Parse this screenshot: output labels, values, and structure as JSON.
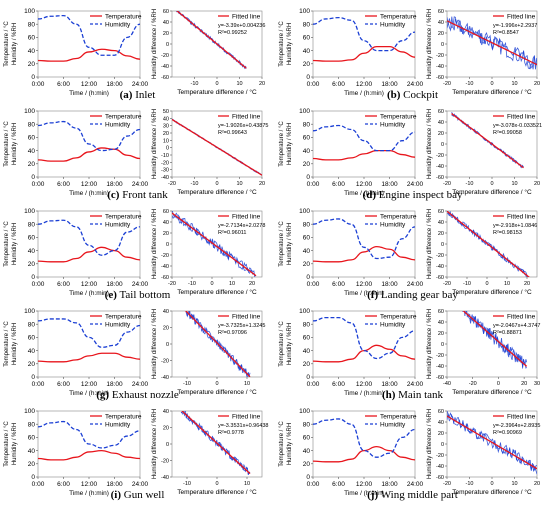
{
  "common": {
    "left_legend": [
      "Temperature",
      "Humidity"
    ],
    "left_ylabel": "Temperature / °C\nHumidity / %RH",
    "left_xlabel": "Time / (h:min)",
    "left_xticks": [
      "0:00",
      "6:00",
      "12:00",
      "18:00",
      "24:00"
    ],
    "left_yticks": [
      "0",
      "20",
      "40",
      "60",
      "80",
      "100"
    ],
    "right_legend": "Fitted line",
    "right_ylabel": "Humidity difference / %RH",
    "right_xlabel": "Temperature difference / °C",
    "colors": {
      "temperature": "#e8151c",
      "humidity": "#1b3fd4",
      "fit": "#e8151c",
      "scatter": "#1b3fd4"
    }
  },
  "panels": [
    {
      "letter": "(a)",
      "name": "Inlet"
    },
    {
      "letter": "(b)",
      "name": "Cockpit"
    },
    {
      "letter": "(c)",
      "name": "Front tank"
    },
    {
      "letter": "(d)",
      "name": "Engine inspect bay"
    },
    {
      "letter": "(e)",
      "name": "Tail bottom"
    },
    {
      "letter": "(f)",
      "name": "Landing gear bay"
    },
    {
      "letter": "(g)",
      "name": "Exhaust nozzle"
    },
    {
      "letter": "(h)",
      "name": "Main tank"
    },
    {
      "letter": "(i)",
      "name": "Gun well"
    },
    {
      "letter": "(j)",
      "name": "Wing middle part"
    }
  ],
  "chart_data": [
    {
      "type": "line",
      "panel": "(a)",
      "x": [
        0,
        3,
        6,
        9,
        12,
        15,
        18,
        21,
        24
      ],
      "series": [
        {
          "name": "Temperature",
          "values": [
            25,
            24,
            24,
            28,
            38,
            42,
            40,
            32,
            27
          ]
        },
        {
          "name": "Humidity",
          "values": [
            88,
            92,
            93,
            80,
            45,
            33,
            33,
            60,
            80
          ]
        }
      ],
      "ylim": [
        0,
        100
      ]
    },
    {
      "type": "scatter",
      "panel": "(a)",
      "equation": "y=-3.39x+0.004236",
      "r2": "R²=0.99252",
      "xlim": [
        -20,
        20
      ],
      "ylim": [
        -60,
        60
      ],
      "xticks": [
        -10,
        0,
        10,
        20
      ],
      "yticks": [
        -60,
        -40,
        -20,
        0,
        20,
        40,
        60
      ],
      "fit": {
        "slope": -3.39,
        "intercept": 0.004236
      },
      "points_range": [
        -18,
        13
      ],
      "spread": 3
    },
    {
      "type": "line",
      "panel": "(b)",
      "x": [
        0,
        3,
        6,
        9,
        12,
        15,
        18,
        21,
        24
      ],
      "series": [
        {
          "name": "Temperature",
          "values": [
            25,
            24,
            24,
            26,
            36,
            46,
            46,
            38,
            30
          ]
        },
        {
          "name": "Humidity",
          "values": [
            80,
            88,
            90,
            86,
            55,
            40,
            40,
            55,
            68
          ]
        }
      ],
      "ylim": [
        0,
        100
      ]
    },
    {
      "type": "scatter",
      "panel": "(b)",
      "equation": "y=-1.996x+2.2937",
      "r2": "R²=0.8547",
      "xlim": [
        -20,
        20
      ],
      "ylim": [
        -60,
        60
      ],
      "xticks": [
        -20,
        -10,
        0,
        10,
        20
      ],
      "yticks": [
        -60,
        -40,
        -20,
        0,
        20,
        40,
        60
      ],
      "fit": {
        "slope": -1.996,
        "intercept": 2.2937
      },
      "points_range": [
        -20,
        22
      ],
      "spread": 14
    },
    {
      "type": "line",
      "panel": "(c)",
      "x": [
        0,
        3,
        6,
        9,
        12,
        15,
        18,
        21,
        24
      ],
      "series": [
        {
          "name": "Temperature",
          "values": [
            26,
            24,
            24,
            29,
            38,
            44,
            42,
            33,
            28
          ]
        },
        {
          "name": "Humidity",
          "values": [
            78,
            82,
            84,
            74,
            50,
            40,
            42,
            62,
            72
          ]
        }
      ],
      "ylim": [
        0,
        100
      ]
    },
    {
      "type": "scatter",
      "panel": "(c)",
      "equation": "y=-1.9026x+0.43875",
      "r2": "R²=0.99643",
      "xlim": [
        -20,
        20
      ],
      "ylim": [
        -40,
        50
      ],
      "xticks": [
        -20,
        -10,
        0,
        10,
        20
      ],
      "yticks": [
        -40,
        -30,
        -20,
        -10,
        0,
        10,
        20,
        30,
        40,
        50
      ],
      "fit": {
        "slope": -1.9026,
        "intercept": 0.43875
      },
      "points_range": [
        -20,
        20
      ],
      "spread": 1
    },
    {
      "type": "line",
      "panel": "(d)",
      "x": [
        0,
        3,
        6,
        9,
        12,
        15,
        18,
        21,
        24
      ],
      "series": [
        {
          "name": "Temperature",
          "values": [
            28,
            26,
            26,
            29,
            35,
            40,
            40,
            34,
            30
          ]
        },
        {
          "name": "Humidity",
          "values": [
            70,
            76,
            78,
            72,
            55,
            40,
            40,
            55,
            68
          ]
        }
      ],
      "ylim": [
        0,
        100
      ]
    },
    {
      "type": "scatter",
      "panel": "(d)",
      "equation": "y=-3.078x-0.033521",
      "r2": "R²=0.99058",
      "xlim": [
        -20,
        20
      ],
      "ylim": [
        -60,
        60
      ],
      "xticks": [
        -20,
        -10,
        0,
        10,
        20
      ],
      "yticks": [
        -60,
        -40,
        -20,
        0,
        20,
        40,
        60
      ],
      "fit": {
        "slope": -3.078,
        "intercept": -0.033521
      },
      "points_range": [
        -18,
        14
      ],
      "spread": 3
    },
    {
      "type": "line",
      "panel": "(e)",
      "x": [
        0,
        3,
        6,
        9,
        12,
        15,
        18,
        21,
        24
      ],
      "series": [
        {
          "name": "Temperature",
          "values": [
            24,
            23,
            23,
            28,
            38,
            45,
            40,
            30,
            26
          ]
        },
        {
          "name": "Humidity",
          "values": [
            80,
            85,
            86,
            76,
            48,
            33,
            40,
            68,
            76
          ]
        }
      ],
      "ylim": [
        0,
        100
      ]
    },
    {
      "type": "scatter",
      "panel": "(e)",
      "equation": "y=-2.7134x+2.0278",
      "r2": "R²=0.96011",
      "xlim": [
        -20,
        25
      ],
      "ylim": [
        -60,
        60
      ],
      "xticks": [
        -20,
        -10,
        0,
        10,
        20
      ],
      "yticks": [
        -60,
        -40,
        -20,
        0,
        20,
        40,
        60
      ],
      "fit": {
        "slope": -2.7134,
        "intercept": 2.0278
      },
      "points_range": [
        -20,
        22
      ],
      "spread": 8
    },
    {
      "type": "line",
      "panel": "(f)",
      "x": [
        0,
        3,
        6,
        9,
        12,
        15,
        18,
        21,
        24
      ],
      "series": [
        {
          "name": "Temperature",
          "values": [
            24,
            23,
            23,
            26,
            38,
            46,
            42,
            30,
            26
          ]
        },
        {
          "name": "Humidity",
          "values": [
            80,
            86,
            88,
            80,
            45,
            28,
            30,
            58,
            76
          ]
        }
      ],
      "ylim": [
        0,
        100
      ]
    },
    {
      "type": "scatter",
      "panel": "(f)",
      "equation": "y=-2.918x+1.0846",
      "r2": "R²=0.98153",
      "xlim": [
        -20,
        25
      ],
      "ylim": [
        -60,
        60
      ],
      "xticks": [
        -20,
        -10,
        0,
        10,
        20
      ],
      "yticks": [
        -60,
        -40,
        -20,
        0,
        20,
        40,
        60
      ],
      "fit": {
        "slope": -2.918,
        "intercept": 1.0846
      },
      "points_range": [
        -20,
        22
      ],
      "spread": 5
    },
    {
      "type": "line",
      "panel": "(g)",
      "x": [
        0,
        3,
        6,
        9,
        12,
        15,
        18,
        21,
        24
      ],
      "series": [
        {
          "name": "Temperature",
          "values": [
            24,
            23,
            23,
            26,
            32,
            36,
            36,
            30,
            27
          ]
        },
        {
          "name": "Humidity",
          "values": [
            85,
            88,
            88,
            82,
            60,
            45,
            48,
            68,
            78
          ]
        }
      ],
      "ylim": [
        0,
        100
      ]
    },
    {
      "type": "scatter",
      "panel": "(g)",
      "equation": "y=-3.7325x+1.3245",
      "r2": "R²=0.97096",
      "xlim": [
        -15,
        15
      ],
      "ylim": [
        -40,
        40
      ],
      "xticks": [
        -10,
        0,
        10
      ],
      "yticks": [
        -40,
        -20,
        0,
        20,
        40
      ],
      "fit": {
        "slope": -3.7325,
        "intercept": 1.3245
      },
      "points_range": [
        -11,
        11
      ],
      "spread": 5
    },
    {
      "type": "line",
      "panel": "(h)",
      "x": [
        0,
        3,
        6,
        9,
        12,
        15,
        18,
        21,
        24
      ],
      "series": [
        {
          "name": "Temperature",
          "values": [
            24,
            23,
            23,
            27,
            40,
            48,
            42,
            32,
            27
          ]
        },
        {
          "name": "Humidity",
          "values": [
            85,
            90,
            90,
            82,
            40,
            28,
            36,
            60,
            70
          ]
        }
      ],
      "ylim": [
        0,
        100
      ]
    },
    {
      "type": "scatter",
      "panel": "(h)",
      "equation": "y=-2.0467x+4.3747",
      "r2": "R²=0.88871",
      "xlim": [
        -40,
        30
      ],
      "ylim": [
        -60,
        60
      ],
      "xticks": [
        -40,
        -20,
        0,
        20,
        30
      ],
      "yticks": [
        -60,
        -40,
        -20,
        0,
        20,
        40,
        60
      ],
      "fit": {
        "slope": -2.0467,
        "intercept": 4.3747
      },
      "points_range": [
        -28,
        22
      ],
      "spread": 12
    },
    {
      "type": "line",
      "panel": "(i)",
      "x": [
        0,
        3,
        6,
        9,
        12,
        15,
        18,
        21,
        24
      ],
      "series": [
        {
          "name": "Temperature",
          "values": [
            28,
            26,
            26,
            30,
            38,
            40,
            36,
            30,
            28
          ]
        },
        {
          "name": "Humidity",
          "values": [
            76,
            82,
            84,
            72,
            50,
            44,
            48,
            62,
            70
          ]
        }
      ],
      "ylim": [
        0,
        100
      ]
    },
    {
      "type": "scatter",
      "panel": "(i)",
      "equation": "y=-3.3531x+0.96438",
      "r2": "R²=0.9778",
      "xlim": [
        -15,
        15
      ],
      "ylim": [
        -40,
        40
      ],
      "xticks": [
        -10,
        0,
        10
      ],
      "yticks": [
        -40,
        -20,
        0,
        20,
        40
      ],
      "fit": {
        "slope": -3.3531,
        "intercept": 0.96438
      },
      "points_range": [
        -12,
        11
      ],
      "spread": 4
    },
    {
      "type": "line",
      "panel": "(j)",
      "x": [
        0,
        3,
        6,
        9,
        12,
        15,
        18,
        21,
        24
      ],
      "series": [
        {
          "name": "Temperature",
          "values": [
            24,
            23,
            23,
            27,
            40,
            46,
            40,
            30,
            26
          ]
        },
        {
          "name": "Humidity",
          "values": [
            80,
            86,
            88,
            80,
            40,
            30,
            36,
            60,
            72
          ]
        }
      ],
      "ylim": [
        0,
        100
      ]
    },
    {
      "type": "scatter",
      "panel": "(j)",
      "equation": "y=-2.3964x+2.8935",
      "r2": "R²=0.90969",
      "xlim": [
        -20,
        20
      ],
      "ylim": [
        -60,
        60
      ],
      "xticks": [
        -20,
        -10,
        0,
        10,
        20
      ],
      "yticks": [
        -60,
        -40,
        -20,
        0,
        20,
        40,
        60
      ],
      "fit": {
        "slope": -2.3964,
        "intercept": 2.8935
      },
      "points_range": [
        -20,
        20
      ],
      "spread": 10
    }
  ]
}
